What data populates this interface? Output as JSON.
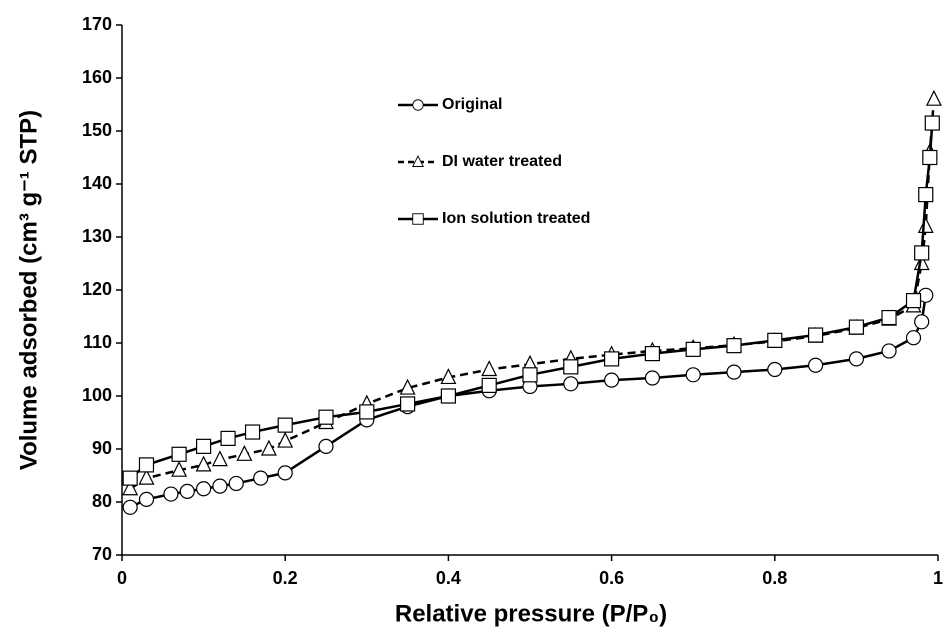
{
  "chart_data": {
    "type": "line",
    "x_label": "Relative pressure (P/P₀)",
    "y_label": "Volume adsorbed (cm³ g⁻¹ STP)",
    "xlim": [
      0,
      1
    ],
    "xticks": [
      0,
      0.2,
      0.4,
      0.6,
      0.8,
      1
    ],
    "ylim": [
      70,
      170
    ],
    "yticks": [
      70,
      80,
      90,
      100,
      110,
      120,
      130,
      140,
      150,
      160,
      170
    ],
    "series": [
      {
        "name": "Original",
        "color": "#000000",
        "dashed": false,
        "marker": "circle",
        "x": [
          0.01,
          0.03,
          0.06,
          0.08,
          0.1,
          0.12,
          0.14,
          0.17,
          0.2,
          0.25,
          0.3,
          0.35,
          0.4,
          0.45,
          0.5,
          0.55,
          0.6,
          0.65,
          0.7,
          0.75,
          0.8,
          0.85,
          0.9,
          0.94,
          0.97,
          0.98,
          0.985
        ],
        "values": [
          79,
          80.5,
          81.5,
          82,
          82.5,
          83,
          83.5,
          84.5,
          85.5,
          90.5,
          95.5,
          98,
          100,
          101,
          101.8,
          102.3,
          103,
          103.4,
          104,
          104.5,
          105,
          105.8,
          107,
          108.5,
          111,
          114,
          119
        ]
      },
      {
        "name": "DI water treated",
        "color": "#000000",
        "dashed": true,
        "marker": "triangle",
        "x": [
          0.01,
          0.03,
          0.07,
          0.1,
          0.12,
          0.15,
          0.18,
          0.2,
          0.25,
          0.3,
          0.35,
          0.4,
          0.45,
          0.5,
          0.55,
          0.6,
          0.65,
          0.7,
          0.75,
          0.8,
          0.85,
          0.9,
          0.94,
          0.97,
          0.98,
          0.985,
          0.99,
          0.995
        ],
        "values": [
          82.5,
          84.5,
          86,
          87,
          88,
          89,
          90,
          91.5,
          95,
          98.5,
          101.5,
          103.5,
          105,
          106,
          107,
          107.8,
          108.5,
          109,
          109.6,
          110.3,
          111.3,
          112.8,
          114.5,
          117,
          125,
          132,
          146,
          156
        ]
      },
      {
        "name": "Ion solution treated",
        "color": "#000000",
        "dashed": false,
        "marker": "square",
        "x": [
          0.01,
          0.03,
          0.07,
          0.1,
          0.13,
          0.16,
          0.2,
          0.25,
          0.3,
          0.35,
          0.4,
          0.45,
          0.5,
          0.55,
          0.6,
          0.65,
          0.7,
          0.75,
          0.8,
          0.85,
          0.9,
          0.94,
          0.97,
          0.98,
          0.985,
          0.99,
          0.993
        ],
        "values": [
          84.5,
          87,
          89,
          90.5,
          92,
          93.2,
          94.5,
          96,
          97,
          98.5,
          100,
          102,
          104,
          105.5,
          107,
          108,
          108.8,
          109.5,
          110.5,
          111.5,
          113,
          114.8,
          118,
          127,
          138,
          145,
          151.5
        ]
      }
    ]
  }
}
